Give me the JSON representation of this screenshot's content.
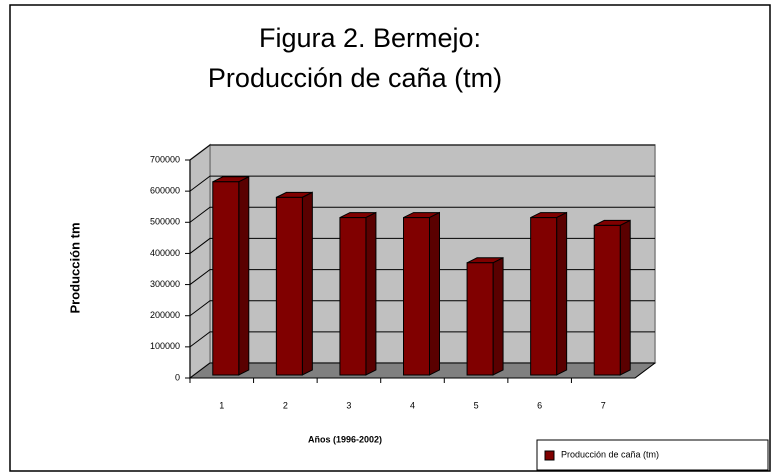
{
  "chart_data": {
    "type": "bar3d",
    "title": "Figura 2. Bermejo:",
    "subtitle": "Producción de caña (tm)",
    "y_label": "Producción tm",
    "x_label": "Años (1996-2002)",
    "categories": [
      "1",
      "2",
      "3",
      "4",
      "5",
      "6",
      "7"
    ],
    "series": [
      {
        "name": "Producción de caña (tm)",
        "color": "#800000",
        "values": [
          630000,
          580000,
          515000,
          515000,
          370000,
          515000,
          490000
        ]
      }
    ],
    "ylim": [
      0,
      700000
    ],
    "yticks": [
      0,
      100000,
      200000,
      300000,
      400000,
      500000,
      600000,
      700000
    ],
    "grid": true,
    "legend": "bottom-right"
  }
}
